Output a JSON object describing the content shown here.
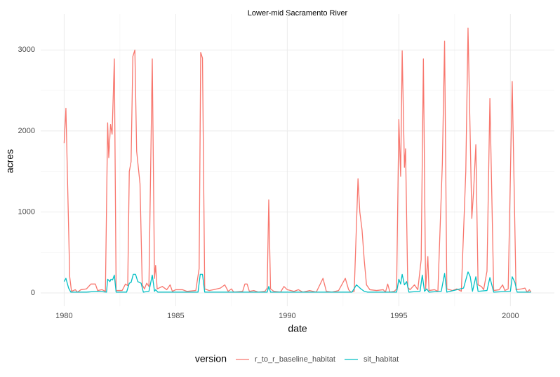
{
  "chart_data": {
    "type": "line",
    "title": "Lower-mid Sacramento River",
    "x_label": "date",
    "y_label": "acres",
    "xlim": [
      1978.95,
      2001.97
    ],
    "ylim": [
      -164,
      3444
    ],
    "xticks": [
      1980,
      1985,
      1990,
      1995,
      2000
    ],
    "yticks": [
      0,
      1000,
      2000,
      3000
    ],
    "grid": true,
    "legend_title": "version",
    "legend_position": "bottom",
    "series": [
      {
        "name": "r_to_r_baseline_habitat",
        "color": "#F8766D",
        "x": [
          1980.0,
          1980.08,
          1980.25,
          1980.33,
          1980.5,
          1980.6,
          1980.75,
          1981.0,
          1981.2,
          1981.4,
          1981.5,
          1981.7,
          1981.85,
          1981.95,
          1982.0,
          1982.08,
          1982.15,
          1982.25,
          1982.33,
          1982.6,
          1982.75,
          1982.85,
          1982.92,
          1983.0,
          1983.08,
          1983.17,
          1983.25,
          1983.4,
          1983.5,
          1983.6,
          1983.7,
          1983.8,
          1983.95,
          1984.05,
          1984.1,
          1984.17,
          1984.4,
          1984.6,
          1984.75,
          1984.85,
          1985.0,
          1985.3,
          1985.5,
          1985.9,
          1986.05,
          1986.12,
          1986.2,
          1986.3,
          1986.5,
          1986.7,
          1987.0,
          1987.2,
          1987.35,
          1987.5,
          1987.6,
          1988.0,
          1988.1,
          1988.2,
          1988.3,
          1988.5,
          1988.7,
          1989.0,
          1989.1,
          1989.17,
          1989.25,
          1989.4,
          1989.7,
          1989.85,
          1990.0,
          1990.3,
          1990.5,
          1990.7,
          1991.0,
          1991.3,
          1991.6,
          1991.75,
          1992.0,
          1992.3,
          1992.6,
          1992.75,
          1992.85,
          1993.0,
          1993.17,
          1993.25,
          1993.35,
          1993.45,
          1993.55,
          1993.7,
          1994.0,
          1994.3,
          1994.4,
          1994.5,
          1994.6,
          1994.8,
          1994.9,
          1995.0,
          1995.08,
          1995.15,
          1995.25,
          1995.3,
          1995.4,
          1995.5,
          1995.7,
          1995.85,
          1996.0,
          1996.1,
          1996.2,
          1996.3,
          1996.35,
          1996.6,
          1996.75,
          1996.95,
          1997.05,
          1997.15,
          1997.4,
          1997.6,
          1997.8,
          1998.0,
          1998.1,
          1998.2,
          1998.27,
          1998.35,
          1998.45,
          1998.55,
          1998.7,
          1998.8,
          1998.95,
          1999.08,
          1999.25,
          1999.5,
          1999.65,
          1999.75,
          1999.9,
          2000.08,
          2000.25,
          2000.5,
          2000.65,
          2000.75,
          2000.85,
          2000.92
        ],
        "values": [
          1850,
          2280,
          200,
          20,
          40,
          10,
          40,
          50,
          110,
          110,
          30,
          40,
          20,
          2100,
          1670,
          2080,
          1960,
          2890,
          30,
          30,
          110,
          90,
          1500,
          1620,
          2920,
          3000,
          1750,
          1350,
          100,
          50,
          120,
          80,
          2890,
          180,
          340,
          50,
          80,
          40,
          100,
          20,
          40,
          40,
          20,
          30,
          300,
          2970,
          2900,
          50,
          30,
          40,
          60,
          100,
          20,
          50,
          10,
          20,
          110,
          110,
          20,
          30,
          10,
          20,
          60,
          1150,
          50,
          20,
          10,
          80,
          40,
          20,
          40,
          10,
          30,
          10,
          180,
          20,
          10,
          30,
          180,
          40,
          10,
          20,
          1410,
          1000,
          780,
          400,
          100,
          40,
          30,
          40,
          10,
          110,
          10,
          20,
          50,
          2140,
          1440,
          2990,
          1550,
          1780,
          70,
          40,
          100,
          40,
          410,
          2890,
          50,
          450,
          30,
          40,
          20,
          1600,
          3110,
          50,
          30,
          50,
          20,
          1500,
          3270,
          1900,
          920,
          1260,
          1830,
          100,
          80,
          40,
          270,
          2400,
          30,
          40,
          100,
          30,
          50,
          2610,
          40,
          50,
          60,
          10,
          40,
          10
        ]
      },
      {
        "name": "sit_habitat",
        "color": "#00BFC4",
        "x": [
          1980.0,
          1980.08,
          1980.2,
          1980.3,
          1981.0,
          1981.5,
          1981.9,
          1981.95,
          1982.05,
          1982.1,
          1982.17,
          1982.25,
          1982.33,
          1982.8,
          1982.92,
          1983.0,
          1983.1,
          1983.2,
          1983.3,
          1983.45,
          1983.55,
          1983.8,
          1983.95,
          1984.05,
          1984.1,
          1984.2,
          1986.0,
          1986.1,
          1986.2,
          1986.3,
          1989.1,
          1989.17,
          1989.25,
          1992.9,
          1993.1,
          1993.3,
          1993.45,
          1993.6,
          1994.9,
          1995.0,
          1995.08,
          1995.15,
          1995.25,
          1995.35,
          1995.45,
          1995.95,
          1996.05,
          1996.15,
          1996.25,
          1996.35,
          1996.9,
          1997.05,
          1997.15,
          1997.9,
          1998.1,
          1998.2,
          1998.3,
          1998.45,
          1998.55,
          1998.95,
          1999.08,
          1999.25,
          2000.0,
          2000.08,
          2000.2,
          2000.3,
          2000.92
        ],
        "values": [
          140,
          180,
          60,
          10,
          10,
          20,
          10,
          170,
          140,
          170,
          160,
          220,
          10,
          10,
          120,
          130,
          230,
          230,
          140,
          120,
          10,
          20,
          220,
          20,
          40,
          10,
          10,
          230,
          230,
          10,
          10,
          80,
          10,
          10,
          100,
          50,
          20,
          10,
          10,
          170,
          110,
          230,
          100,
          140,
          10,
          20,
          220,
          20,
          50,
          10,
          20,
          240,
          10,
          60,
          260,
          200,
          20,
          200,
          20,
          30,
          190,
          10,
          20,
          200,
          130,
          10,
          10
        ]
      }
    ]
  }
}
